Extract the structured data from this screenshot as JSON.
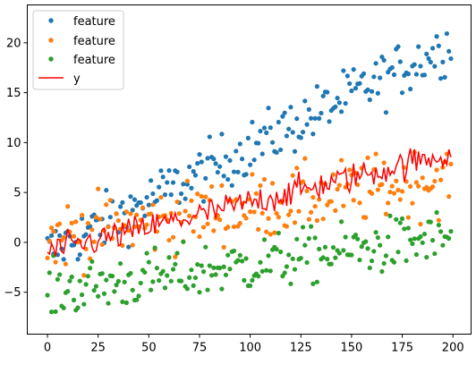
{
  "chart_data": {
    "type": "scatter",
    "title": "",
    "xlabel": "",
    "ylabel": "",
    "xlim": [
      -9.95,
      208.95
    ],
    "ylim": [
      -9.2,
      23.8
    ],
    "xticks": [
      0,
      25,
      50,
      75,
      100,
      125,
      150,
      175,
      200
    ],
    "yticks": [
      -5,
      0,
      5,
      10,
      15,
      20
    ],
    "grid": false,
    "legend_position": "top-left",
    "n_points": 200,
    "colors": {
      "blue": "#1f77b4",
      "orange": "#ff7f0e",
      "green": "#2ca02c",
      "red": "#ff0000"
    },
    "series": [
      {
        "name": "feature",
        "kind": "scatter",
        "color": "#1f77b4",
        "trend": {
          "start": -1.0,
          "slope": 0.105
        },
        "spread": 3.0,
        "sample_points": [
          [
            0,
            -3.8
          ],
          [
            2,
            -0.1
          ],
          [
            20,
            3.5
          ],
          [
            60,
            6.5
          ],
          [
            75,
            9.0
          ],
          [
            100,
            10.5
          ],
          [
            125,
            14.0
          ],
          [
            150,
            16.0
          ],
          [
            175,
            20.5
          ],
          [
            199,
            22.8
          ]
        ]
      },
      {
        "name": "feature",
        "kind": "scatter",
        "color": "#ff7f0e",
        "trend": {
          "start": 0.5,
          "slope": 0.03
        },
        "spread": 3.6,
        "sample_points": [
          [
            1,
            3.2
          ],
          [
            10,
            3.3
          ],
          [
            25,
            4.7
          ],
          [
            50,
            2.0
          ],
          [
            75,
            4.0
          ],
          [
            100,
            5.0
          ],
          [
            125,
            5.5
          ],
          [
            150,
            6.0
          ],
          [
            175,
            6.5
          ],
          [
            199,
            6.6
          ]
        ]
      },
      {
        "name": "feature",
        "kind": "scatter",
        "color": "#2ca02c",
        "trend": {
          "start": -5.0,
          "slope": 0.028
        },
        "spread": 3.0,
        "sample_points": [
          [
            1,
            -7.8
          ],
          [
            20,
            -6.8
          ],
          [
            40,
            -5.5
          ],
          [
            60,
            -3.5
          ],
          [
            80,
            -5.0
          ],
          [
            100,
            -3.0
          ],
          [
            125,
            -1.0
          ],
          [
            150,
            0.0
          ],
          [
            175,
            1.0
          ],
          [
            199,
            -2.8
          ]
        ]
      },
      {
        "name": "y",
        "kind": "line",
        "color": "#ff0000",
        "trend": {
          "start": -1.0,
          "slope": 0.05
        },
        "spread": 1.4,
        "sample_points": [
          [
            0,
            -3.5
          ],
          [
            25,
            -1.5
          ],
          [
            50,
            2.0
          ],
          [
            75,
            3.0
          ],
          [
            100,
            4.0
          ],
          [
            125,
            5.0
          ],
          [
            150,
            6.5
          ],
          [
            175,
            7.5
          ],
          [
            199,
            9.3
          ]
        ]
      }
    ]
  }
}
